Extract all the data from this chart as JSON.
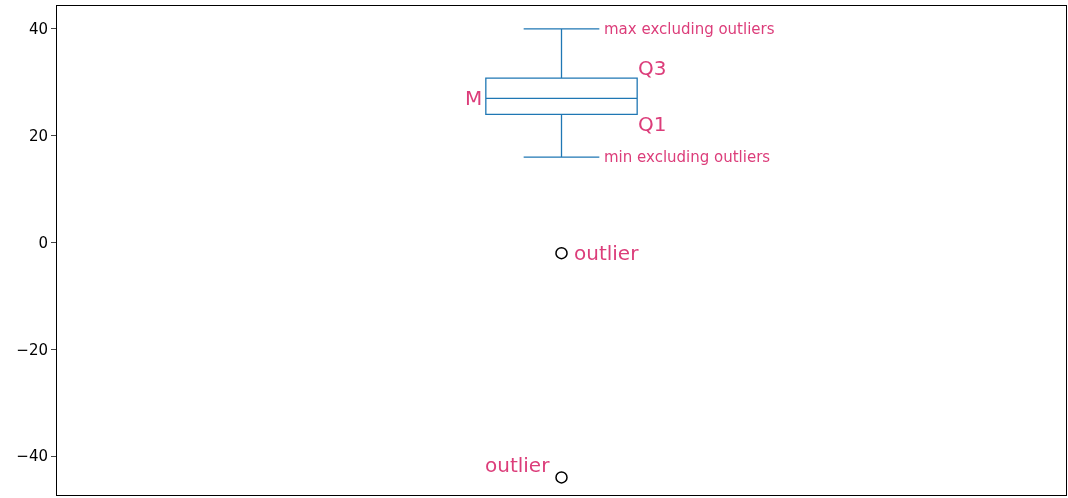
{
  "chart_data": {
    "type": "box",
    "categories": [
      null
    ],
    "boxes": [
      {
        "low": 16,
        "q1": 24,
        "median": 27,
        "q3": 30.8,
        "high": 40,
        "outliers": [
          -2,
          -44
        ]
      }
    ],
    "color": "#1f77b4",
    "ylim": [
      -47.3,
      44.3
    ],
    "yticks": [
      {
        "value": -40,
        "label": "−40"
      },
      {
        "value": -20,
        "label": "−20"
      },
      0,
      20,
      40
    ],
    "tick_labels": "y",
    "annotations": [
      "max excluding outliers",
      "Q3",
      "M",
      "Q1",
      "min excluding outliers",
      "outlier",
      "outlier"
    ]
  }
}
